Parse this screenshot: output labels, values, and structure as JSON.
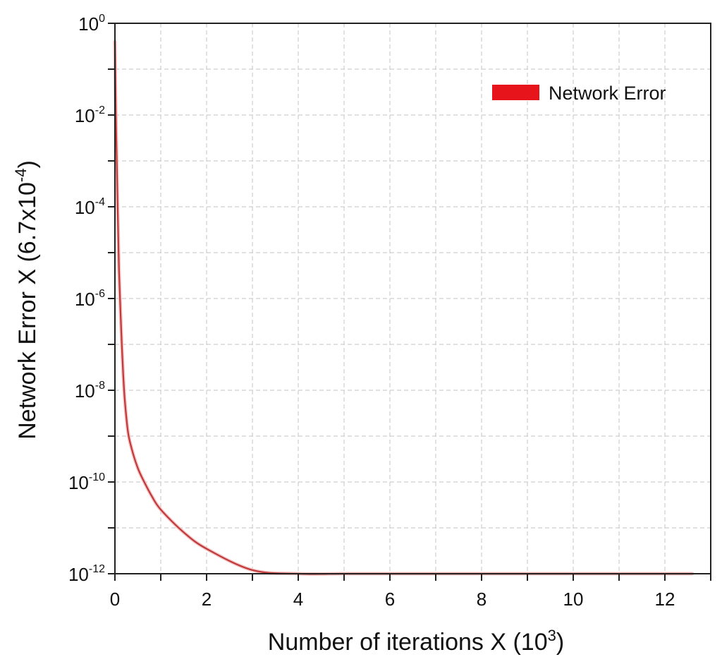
{
  "chart_data": {
    "type": "line",
    "xlabel_main": "Number of iterations X (10",
    "xlabel_sup": "3",
    "xlabel_close": ")",
    "ylabel_main": "Network Error X (6.7x10",
    "ylabel_sup": "-4",
    "ylabel_close": ")",
    "xlim": [
      0,
      13
    ],
    "ylim_exp": [
      -12,
      0
    ],
    "y_scale": "log",
    "grid": true,
    "legend_position": "top-right",
    "x_ticks": [
      {
        "value": 0,
        "label": "0"
      },
      {
        "value": 2,
        "label": "2"
      },
      {
        "value": 4,
        "label": "4"
      },
      {
        "value": 6,
        "label": "6"
      },
      {
        "value": 8,
        "label": "8"
      },
      {
        "value": 10,
        "label": "10"
      },
      {
        "value": 12,
        "label": "12"
      }
    ],
    "y_ticks": [
      {
        "exp": 0,
        "base": "10",
        "sup": "0"
      },
      {
        "exp": -2,
        "base": "10",
        "sup": "-2"
      },
      {
        "exp": -4,
        "base": "10",
        "sup": "-4"
      },
      {
        "exp": -6,
        "base": "10",
        "sup": "-6"
      },
      {
        "exp": -8,
        "base": "10",
        "sup": "-8"
      },
      {
        "exp": -10,
        "base": "10",
        "sup": "-10"
      },
      {
        "exp": -12,
        "base": "10",
        "sup": "-12"
      }
    ],
    "series": [
      {
        "name": "Network Error",
        "color": "#e8141c",
        "line_color": "#c0393b",
        "x": [
          0,
          0.02,
          0.05,
          0.08,
          0.1,
          0.15,
          0.2,
          0.25,
          0.3,
          0.4,
          0.5,
          0.6,
          0.8,
          1.0,
          1.5,
          2.0,
          3.0,
          4.0,
          5.0,
          6.0,
          7.0,
          8.0,
          9.0,
          10.0,
          11.0,
          12.0,
          12.6
        ],
        "y": [
          0.4,
          0.01,
          0.0003,
          1e-05,
          2e-06,
          1e-07,
          1e-08,
          2.5e-09,
          1e-09,
          4e-10,
          2e-10,
          1.2e-10,
          5e-11,
          2.5e-11,
          8e-12,
          3.5e-12,
          1.2e-12,
          6e-13,
          3.5e-13,
          2.2e-13,
          1.5e-13,
          1.1e-13,
          8e-14,
          5.5e-14,
          4e-14,
          2.8e-14,
          1e-12
        ]
      }
    ]
  }
}
